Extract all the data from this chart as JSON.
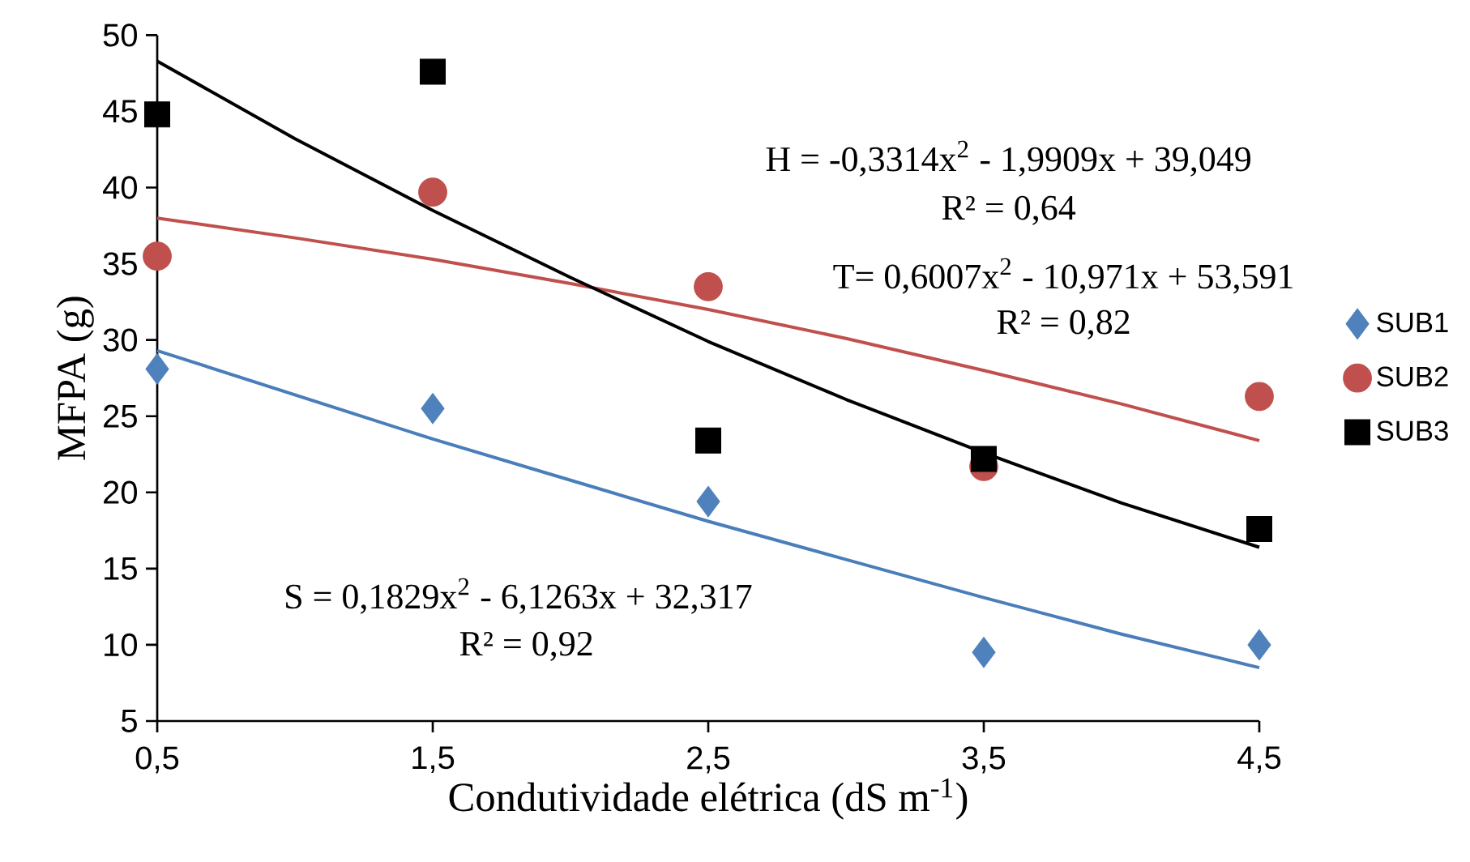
{
  "chart_data": {
    "type": "scatter",
    "xlabel": "Condutividade elétrica (dS m$^{-1}$)",
    "ylabel": "MFPA (g)",
    "xlim": [
      0.5,
      4.5
    ],
    "ylim": [
      5,
      50
    ],
    "xticks": [
      {
        "value": 0.5,
        "label": "0,5"
      },
      {
        "value": 1.5,
        "label": "1,5"
      },
      {
        "value": 2.5,
        "label": "2,5"
      },
      {
        "value": 3.5,
        "label": "3,5"
      },
      {
        "value": 4.5,
        "label": "4,5"
      }
    ],
    "yticks": [
      5,
      10,
      15,
      20,
      25,
      30,
      35,
      40,
      45,
      50
    ],
    "x": [
      0.5,
      1.5,
      2.5,
      3.5,
      4.5
    ],
    "legend": "right",
    "grid": false,
    "series": [
      {
        "name": "SUB1",
        "color": "#4f81bd",
        "marker": "diamond",
        "values": [
          28.1,
          25.5,
          19.4,
          9.5,
          10.0
        ]
      },
      {
        "name": "SUB2",
        "color": "#c0504d",
        "marker": "circle",
        "values": [
          35.5,
          39.7,
          33.5,
          21.7,
          26.3
        ]
      },
      {
        "name": "SUB3",
        "color": "#000000",
        "marker": "square",
        "values": [
          44.8,
          47.6,
          23.4,
          22.2,
          17.6
        ]
      },
      {
        "type": "line",
        "color": "#4a7ebb",
        "marker": "none",
        "x": [
          0.5,
          1,
          1.5,
          2,
          2.5,
          3,
          3.5,
          4,
          4.5
        ],
        "values": [
          29.3,
          26.4,
          23.5,
          20.8,
          18.1,
          15.6,
          13.1,
          10.7,
          8.5
        ]
      },
      {
        "type": "line",
        "color": "#c0504d",
        "marker": "none",
        "x": [
          0.5,
          1,
          1.5,
          2,
          2.5,
          3,
          3.5,
          4,
          4.5
        ],
        "values": [
          38.0,
          36.7,
          35.3,
          33.7,
          32.0,
          30.1,
          28.0,
          25.8,
          23.4
        ]
      },
      {
        "type": "line",
        "color": "#000000",
        "marker": "none",
        "x": [
          0.5,
          1,
          1.5,
          2,
          2.5,
          3,
          3.5,
          4,
          4.5
        ],
        "values": [
          48.3,
          43.2,
          38.5,
          34.1,
          29.9,
          26.1,
          22.6,
          19.3,
          16.4
        ]
      }
    ],
    "annotations": [
      "H = -0,3314x$^{2}$ - 1,9909x + 39,049",
      "R² = 0,64",
      "T= 0,6007x$^{2}$ - 10,971x + 53,591",
      "R² = 0,82",
      "S = 0,1829x$^{2}$ - 6,1263x + 32,317",
      "R² = 0,92"
    ]
  }
}
